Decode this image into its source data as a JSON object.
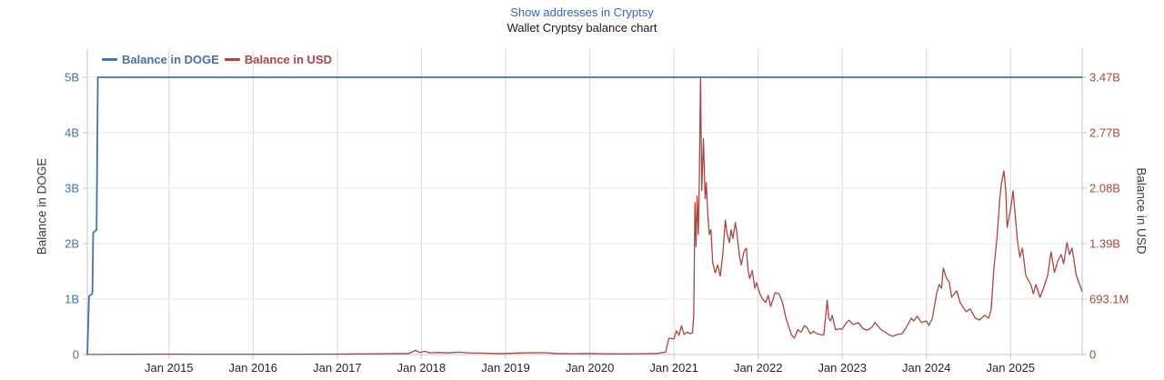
{
  "header": {
    "link_label": "Show addresses in Cryptsy",
    "title": "Wallet Cryptsy balance chart"
  },
  "style": {
    "doge_color": "#4572a7",
    "usd_color": "#aa4643",
    "link_color": "#3366cc",
    "grid_h_color": "#e4e4e4",
    "grid_v_color": "#d8d8d8",
    "axis_line_color": "#c6c6c6",
    "x_label_color": "#262626",
    "background": "#ffffff"
  },
  "chart_data": {
    "type": "line",
    "title": "Wallet Cryptsy balance chart",
    "legend": {
      "position": "top-left-inside",
      "entries": [
        "Balance in DOGE",
        "Balance in USD"
      ]
    },
    "grid": true,
    "x_axis": {
      "range": [
        2014.03,
        2025.85
      ],
      "tick_years": [
        2015,
        2016,
        2017,
        2018,
        2019,
        2020,
        2021,
        2022,
        2023,
        2024,
        2025
      ],
      "tick_labels": [
        "Jan 2015",
        "Jan 2016",
        "Jan 2017",
        "Jan 2018",
        "Jan 2019",
        "Jan 2020",
        "Jan 2021",
        "Jan 2022",
        "Jan 2023",
        "Jan 2024",
        "Jan 2025"
      ]
    },
    "y_left": {
      "label": "Balance in DOGE",
      "max": 5,
      "unit": "billions of DOGE",
      "ticks": [
        {
          "v": 0,
          "label": "0"
        },
        {
          "v": 1,
          "label": "1B"
        },
        {
          "v": 2,
          "label": "2B"
        },
        {
          "v": 3,
          "label": "3B"
        },
        {
          "v": 4,
          "label": "4B"
        },
        {
          "v": 5,
          "label": "5B"
        }
      ]
    },
    "y_right": {
      "label": "Balance in USD",
      "max_M": 3465.5,
      "unit": "millions of USD",
      "ticks": [
        {
          "v": 0,
          "label": "0"
        },
        {
          "v": 693.1,
          "label": "693.1M"
        },
        {
          "v": 1386.2,
          "label": "1.39B"
        },
        {
          "v": 2079.3,
          "label": "2.08B"
        },
        {
          "v": 2772.4,
          "label": "2.77B"
        },
        {
          "v": 3465.5,
          "label": "3.47B"
        }
      ]
    },
    "series": [
      {
        "name": "Balance in DOGE",
        "axis": "left",
        "color": "#4572a7",
        "stroke_width": 1.8,
        "points": [
          [
            2014.03,
            0
          ],
          [
            2014.05,
            1.05
          ],
          [
            2014.09,
            1.1
          ],
          [
            2014.1,
            2.2
          ],
          [
            2014.14,
            2.25
          ],
          [
            2014.155,
            5.0
          ],
          [
            2025.85,
            5.0
          ]
        ]
      },
      {
        "name": "Balance in USD",
        "axis": "right",
        "color": "#aa4643",
        "stroke_width": 1.3,
        "points": [
          [
            2014.03,
            1
          ],
          [
            2014.5,
            3
          ],
          [
            2015.0,
            6
          ],
          [
            2015.3,
            4
          ],
          [
            2016.0,
            5
          ],
          [
            2016.5,
            4
          ],
          [
            2017.0,
            6
          ],
          [
            2017.5,
            9
          ],
          [
            2017.85,
            14
          ],
          [
            2017.93,
            52
          ],
          [
            2017.98,
            26
          ],
          [
            2018.04,
            40
          ],
          [
            2018.1,
            22
          ],
          [
            2018.2,
            26
          ],
          [
            2018.3,
            20
          ],
          [
            2018.45,
            30
          ],
          [
            2018.55,
            22
          ],
          [
            2018.7,
            18
          ],
          [
            2018.9,
            12
          ],
          [
            2019.0,
            14
          ],
          [
            2019.2,
            20
          ],
          [
            2019.45,
            24
          ],
          [
            2019.6,
            14
          ],
          [
            2019.8,
            10
          ],
          [
            2020.0,
            12
          ],
          [
            2020.3,
            8
          ],
          [
            2020.6,
            10
          ],
          [
            2020.8,
            14
          ],
          [
            2020.9,
            30
          ],
          [
            2020.94,
            205
          ],
          [
            2021.0,
            195
          ],
          [
            2021.03,
            298
          ],
          [
            2021.06,
            240
          ],
          [
            2021.09,
            360
          ],
          [
            2021.12,
            250
          ],
          [
            2021.16,
            282
          ],
          [
            2021.19,
            260
          ],
          [
            2021.22,
            272
          ],
          [
            2021.235,
            500
          ],
          [
            2021.25,
            1900
          ],
          [
            2021.262,
            1350
          ],
          [
            2021.275,
            1980
          ],
          [
            2021.29,
            1500
          ],
          [
            2021.3,
            2100
          ],
          [
            2021.315,
            3466
          ],
          [
            2021.33,
            2050
          ],
          [
            2021.35,
            2700
          ],
          [
            2021.37,
            1950
          ],
          [
            2021.385,
            2150
          ],
          [
            2021.4,
            1800
          ],
          [
            2021.42,
            1500
          ],
          [
            2021.44,
            1560
          ],
          [
            2021.46,
            1150
          ],
          [
            2021.49,
            1020
          ],
          [
            2021.52,
            1120
          ],
          [
            2021.55,
            980
          ],
          [
            2021.58,
            1250
          ],
          [
            2021.61,
            1680
          ],
          [
            2021.63,
            1520
          ],
          [
            2021.66,
            1400
          ],
          [
            2021.68,
            1560
          ],
          [
            2021.7,
            1450
          ],
          [
            2021.73,
            1650
          ],
          [
            2021.75,
            1500
          ],
          [
            2021.78,
            1220
          ],
          [
            2021.8,
            1120
          ],
          [
            2021.83,
            1280
          ],
          [
            2021.86,
            1330
          ],
          [
            2021.88,
            1060
          ],
          [
            2021.9,
            950
          ],
          [
            2021.93,
            1050
          ],
          [
            2021.96,
            830
          ],
          [
            2021.98,
            900
          ],
          [
            2022.02,
            760
          ],
          [
            2022.05,
            700
          ],
          [
            2022.09,
            650
          ],
          [
            2022.12,
            740
          ],
          [
            2022.15,
            600
          ],
          [
            2022.2,
            770
          ],
          [
            2022.25,
            760
          ],
          [
            2022.29,
            650
          ],
          [
            2022.33,
            460
          ],
          [
            2022.36,
            360
          ],
          [
            2022.4,
            240
          ],
          [
            2022.43,
            205
          ],
          [
            2022.47,
            310
          ],
          [
            2022.51,
            280
          ],
          [
            2022.55,
            360
          ],
          [
            2022.58,
            340
          ],
          [
            2022.62,
            260
          ],
          [
            2022.66,
            290
          ],
          [
            2022.7,
            260
          ],
          [
            2022.74,
            250
          ],
          [
            2022.78,
            245
          ],
          [
            2022.82,
            680
          ],
          [
            2022.84,
            450
          ],
          [
            2022.86,
            420
          ],
          [
            2022.88,
            490
          ],
          [
            2022.92,
            310
          ],
          [
            2022.96,
            320
          ],
          [
            2023.0,
            318
          ],
          [
            2023.05,
            400
          ],
          [
            2023.08,
            430
          ],
          [
            2023.13,
            375
          ],
          [
            2023.19,
            400
          ],
          [
            2023.25,
            320
          ],
          [
            2023.3,
            305
          ],
          [
            2023.35,
            340
          ],
          [
            2023.39,
            400
          ],
          [
            2023.45,
            320
          ],
          [
            2023.5,
            285
          ],
          [
            2023.55,
            250
          ],
          [
            2023.6,
            228
          ],
          [
            2023.65,
            250
          ],
          [
            2023.71,
            260
          ],
          [
            2023.76,
            340
          ],
          [
            2023.82,
            455
          ],
          [
            2023.85,
            420
          ],
          [
            2023.89,
            478
          ],
          [
            2023.94,
            400
          ],
          [
            2024.0,
            420
          ],
          [
            2024.03,
            365
          ],
          [
            2024.07,
            455
          ],
          [
            2024.12,
            760
          ],
          [
            2024.15,
            875
          ],
          [
            2024.18,
            830
          ],
          [
            2024.2,
            1080
          ],
          [
            2024.24,
            950
          ],
          [
            2024.27,
            910
          ],
          [
            2024.3,
            716
          ],
          [
            2024.36,
            796
          ],
          [
            2024.4,
            650
          ],
          [
            2024.47,
            535
          ],
          [
            2024.52,
            570
          ],
          [
            2024.58,
            455
          ],
          [
            2024.63,
            432
          ],
          [
            2024.69,
            490
          ],
          [
            2024.74,
            455
          ],
          [
            2024.77,
            570
          ],
          [
            2024.8,
            1060
          ],
          [
            2024.84,
            1480
          ],
          [
            2024.87,
            1930
          ],
          [
            2024.89,
            2130
          ],
          [
            2024.92,
            2295
          ],
          [
            2024.94,
            2080
          ],
          [
            2024.96,
            1590
          ],
          [
            2025.0,
            1820
          ],
          [
            2025.03,
            2045
          ],
          [
            2025.06,
            1670
          ],
          [
            2025.08,
            1440
          ],
          [
            2025.11,
            1216
          ],
          [
            2025.14,
            1330
          ],
          [
            2025.18,
            990
          ],
          [
            2025.24,
            875
          ],
          [
            2025.27,
            760
          ],
          [
            2025.3,
            875
          ],
          [
            2025.35,
            716
          ],
          [
            2025.39,
            830
          ],
          [
            2025.44,
            990
          ],
          [
            2025.48,
            1285
          ],
          [
            2025.52,
            1025
          ],
          [
            2025.56,
            1170
          ],
          [
            2025.6,
            1250
          ],
          [
            2025.63,
            1135
          ],
          [
            2025.67,
            1400
          ],
          [
            2025.7,
            1250
          ],
          [
            2025.73,
            1330
          ],
          [
            2025.78,
            990
          ],
          [
            2025.82,
            875
          ],
          [
            2025.85,
            790
          ]
        ]
      }
    ]
  }
}
